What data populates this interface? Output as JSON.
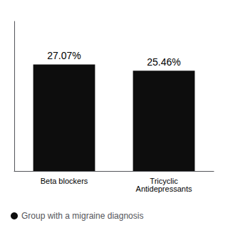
{
  "chart_data": {
    "type": "bar",
    "categories": [
      "Beta blockers",
      "Tricyclic\nAntidepressants"
    ],
    "series": [
      {
        "name": "Group with a migraine diagnosis",
        "color": "#0d0d0d",
        "values": [
          27.07,
          25.46
        ],
        "value_labels": [
          "27.07%",
          "25.46%"
        ]
      }
    ],
    "ylim": [
      0,
      38
    ],
    "grid": false,
    "legend": "lower left",
    "data_labels": true,
    "tick_labels": "x"
  }
}
